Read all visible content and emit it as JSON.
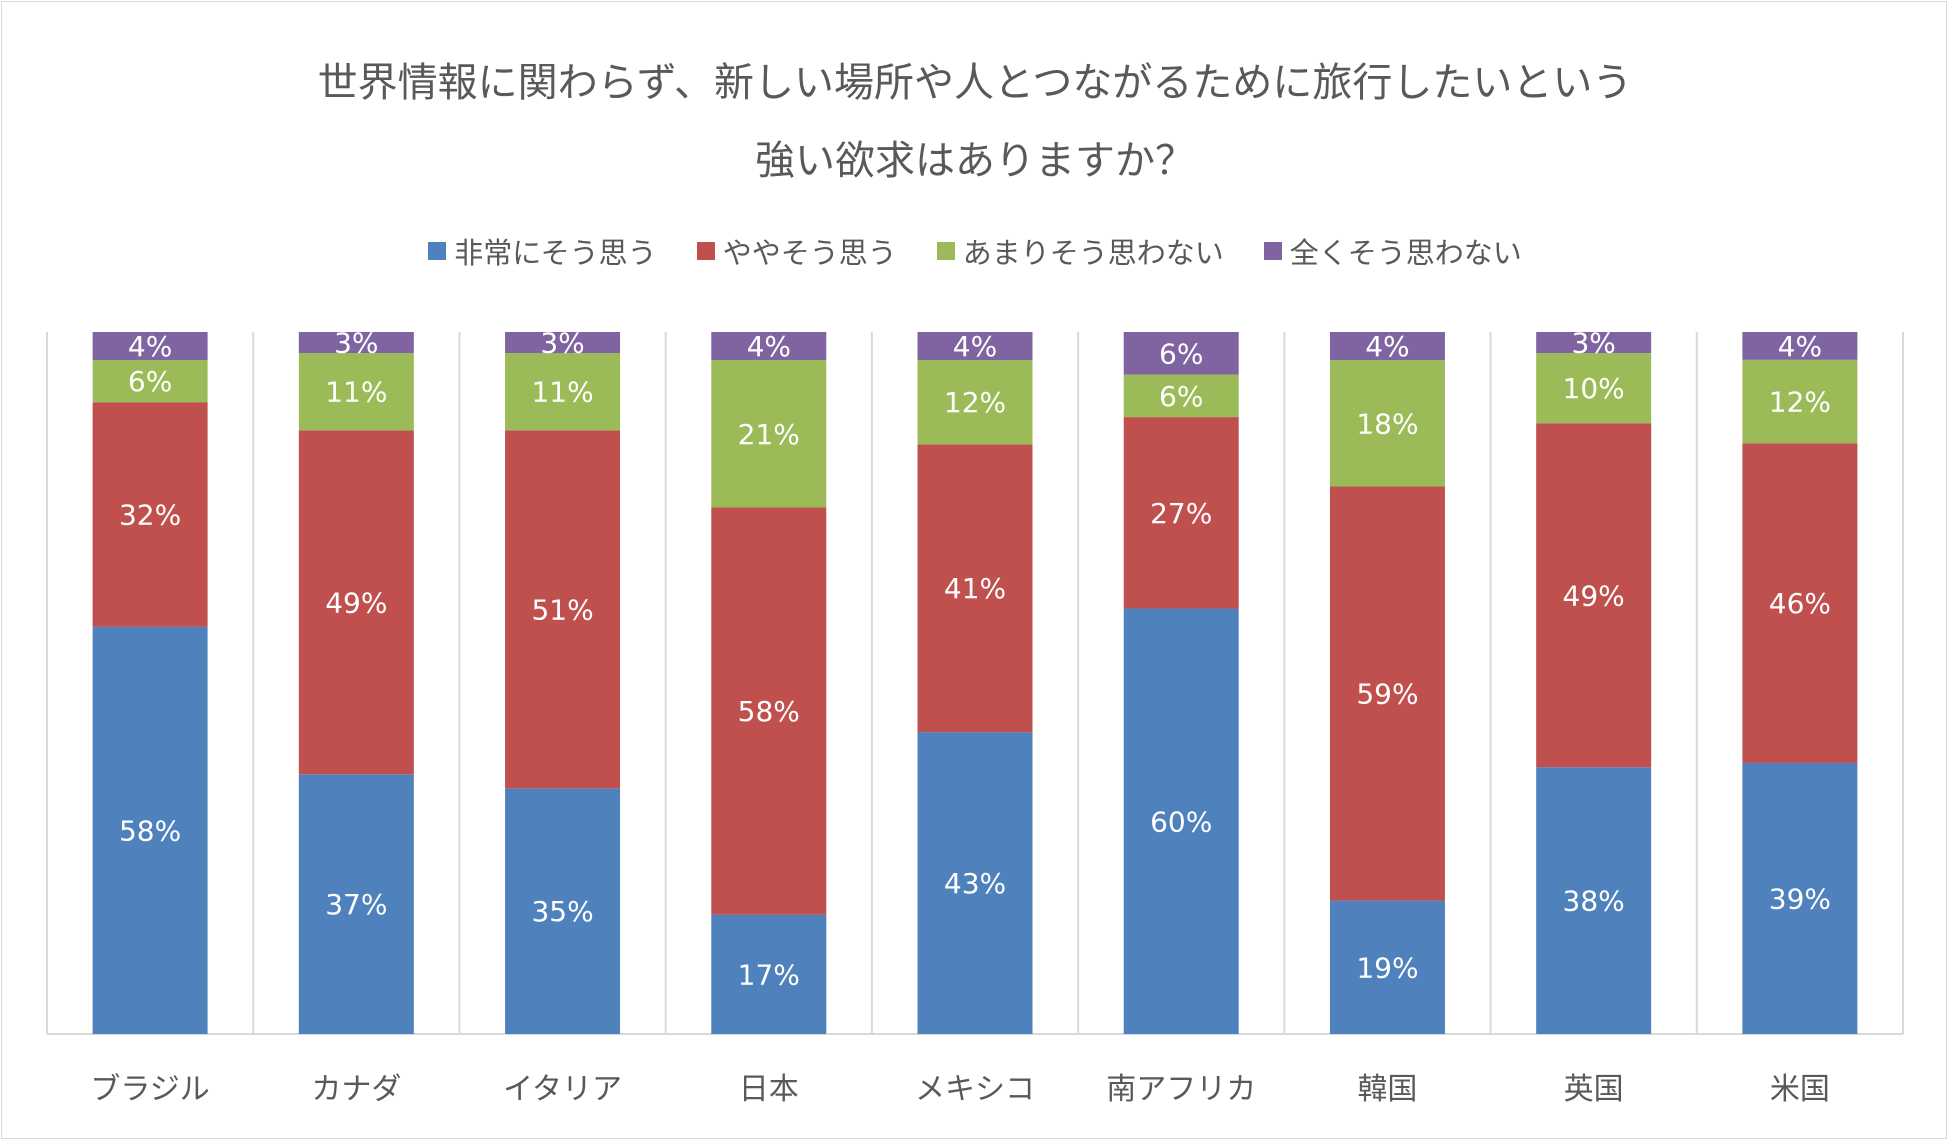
{
  "chart_data": {
    "type": "bar",
    "stacked": true,
    "title_lines": [
      "世界情報に関わらず、新しい場所や人とつながるために旅行したいという",
      "強い欲求はありますか？"
    ],
    "categories": [
      "ブラジル",
      "カナダ",
      "イタリア",
      "日本",
      "メキシコ",
      "南アフリカ",
      "韓国",
      "英国",
      "米国"
    ],
    "series": [
      {
        "name": "非常にそう思う",
        "color": "#4f81bd",
        "values": [
          58,
          37,
          35,
          17,
          43,
          60,
          19,
          38,
          39
        ]
      },
      {
        "name": "ややそう思う",
        "color": "#c0504d",
        "values": [
          32,
          49,
          51,
          58,
          41,
          27,
          59,
          49,
          46
        ]
      },
      {
        "name": "あまりそう思わない",
        "color": "#9bbb59",
        "values": [
          6,
          11,
          11,
          21,
          12,
          6,
          18,
          10,
          12
        ]
      },
      {
        "name": "全くそう思わない",
        "color": "#8064a2",
        "values": [
          4,
          3,
          3,
          4,
          4,
          6,
          4,
          3,
          4
        ]
      }
    ],
    "value_suffix": "%",
    "legend_position": "top",
    "ylim": [
      0,
      100
    ],
    "grid": "vertical category separators"
  }
}
